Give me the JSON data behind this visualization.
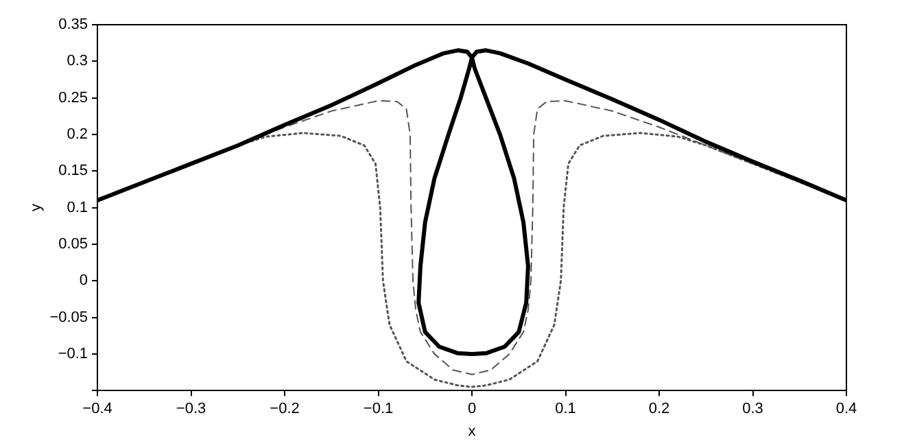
{
  "chart_data": {
    "type": "line",
    "xlabel": "x",
    "ylabel": "y",
    "xlim": [
      -0.4,
      0.4
    ],
    "ylim": [
      -0.15,
      0.35
    ],
    "xticks": [
      {
        "value": -0.4,
        "label": "−0.4"
      },
      {
        "value": -0.3,
        "label": "−0.3"
      },
      {
        "value": -0.2,
        "label": "−0.2"
      },
      {
        "value": -0.1,
        "label": "−0.1"
      },
      0,
      0.1,
      0.2,
      0.3,
      0.4
    ],
    "yticks": [
      {
        "value": -0.15,
        "label": null
      },
      {
        "value": -0.1,
        "label": "−0.1"
      },
      {
        "value": -0.05,
        "label": "−0.05"
      },
      0,
      0.05,
      0.1,
      0.15,
      0.2,
      0.25,
      0.3,
      0.35
    ],
    "grid": false,
    "legend": false,
    "marker": "none",
    "series": [
      {
        "color": "#000000",
        "line_style": "solid",
        "x": [
          -0.4,
          -0.35,
          -0.3,
          -0.25,
          -0.2,
          -0.15,
          -0.1,
          -0.06,
          -0.03,
          -0.015,
          -0.005,
          0,
          0.003,
          0.015,
          0.03,
          0.045,
          0.055,
          0.06,
          0.058,
          0.05,
          0.035,
          0.015,
          0,
          -0.015,
          -0.035,
          -0.05,
          -0.057,
          -0.055,
          -0.05,
          -0.04,
          -0.025,
          -0.012,
          -0.003,
          0,
          0.005,
          0.015,
          0.03,
          0.06,
          0.1,
          0.15,
          0.2,
          0.25,
          0.3,
          0.35,
          0.4
        ],
        "values": [
          0.11,
          0.135,
          0.16,
          0.185,
          0.213,
          0.24,
          0.27,
          0.295,
          0.311,
          0.315,
          0.313,
          0.305,
          0.29,
          0.25,
          0.2,
          0.14,
          0.08,
          0.02,
          -0.03,
          -0.07,
          -0.09,
          -0.099,
          -0.1,
          -0.099,
          -0.09,
          -0.07,
          -0.03,
          0.02,
          0.08,
          0.14,
          0.2,
          0.25,
          0.29,
          0.305,
          0.313,
          0.315,
          0.311,
          0.297,
          0.275,
          0.248,
          0.22,
          0.19,
          0.163,
          0.137,
          0.11
        ]
      },
      {
        "color": "#555555",
        "line_style": "dashed",
        "x": [
          -0.4,
          -0.3,
          -0.25,
          -0.22,
          -0.2,
          -0.15,
          -0.1,
          -0.08,
          -0.07,
          -0.066,
          -0.065,
          -0.063,
          -0.06,
          -0.055,
          -0.04,
          -0.02,
          0,
          0.02,
          0.04,
          0.055,
          0.06,
          0.063,
          0.065,
          0.066,
          0.07,
          0.08,
          0.1,
          0.15,
          0.2,
          0.22,
          0.25,
          0.3,
          0.4
        ],
        "values": [
          0.11,
          0.16,
          0.185,
          0.2,
          0.21,
          0.232,
          0.246,
          0.245,
          0.235,
          0.2,
          0.1,
          0.0,
          -0.04,
          -0.07,
          -0.1,
          -0.122,
          -0.128,
          -0.122,
          -0.1,
          -0.07,
          -0.04,
          0.0,
          0.1,
          0.2,
          0.235,
          0.245,
          0.246,
          0.232,
          0.21,
          0.2,
          0.185,
          0.16,
          0.11
        ]
      },
      {
        "color": "#555555",
        "line_style": "dotted",
        "x": [
          -0.4,
          -0.3,
          -0.25,
          -0.22,
          -0.18,
          -0.14,
          -0.115,
          -0.103,
          -0.098,
          -0.095,
          -0.088,
          -0.07,
          -0.04,
          -0.015,
          0,
          0.015,
          0.04,
          0.07,
          0.088,
          0.095,
          0.098,
          0.103,
          0.115,
          0.14,
          0.18,
          0.22,
          0.25,
          0.3,
          0.4
        ],
        "values": [
          0.11,
          0.16,
          0.185,
          0.197,
          0.202,
          0.198,
          0.185,
          0.16,
          0.1,
          0.0,
          -0.06,
          -0.11,
          -0.135,
          -0.143,
          -0.145,
          -0.143,
          -0.135,
          -0.11,
          -0.06,
          0.0,
          0.1,
          0.16,
          0.185,
          0.198,
          0.202,
          0.197,
          0.185,
          0.16,
          0.11
        ]
      }
    ]
  }
}
